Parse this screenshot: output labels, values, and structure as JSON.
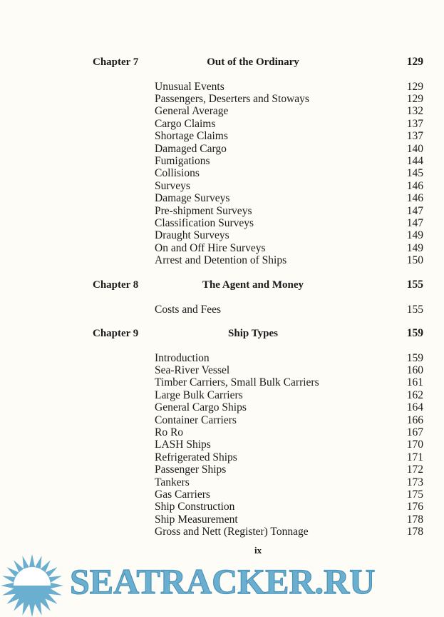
{
  "chapters": [
    {
      "label": "Chapter 7",
      "title": "Out of the Ordinary",
      "page": "129",
      "entries": [
        {
          "title": "Unusual Events",
          "page": "129"
        },
        {
          "title": "Passengers, Deserters and Stoways",
          "page": "129"
        },
        {
          "title": "General Average",
          "page": "132"
        },
        {
          "title": "Cargo Claims",
          "page": "137"
        },
        {
          "title": "Shortage Claims",
          "page": "137"
        },
        {
          "title": "Damaged Cargo",
          "page": "140"
        },
        {
          "title": "Fumigations",
          "page": "144"
        },
        {
          "title": "Collisions",
          "page": "145"
        },
        {
          "title": "Surveys",
          "page": "146"
        },
        {
          "title": "Damage Surveys",
          "page": "146"
        },
        {
          "title": "Pre-shipment Surveys",
          "page": "147"
        },
        {
          "title": "Classification Surveys",
          "page": "147"
        },
        {
          "title": "Draught Surveys",
          "page": "149"
        },
        {
          "title": "On and Off Hire Surveys",
          "page": "149"
        },
        {
          "title": "Arrest and Detention of Ships",
          "page": "150"
        }
      ]
    },
    {
      "label": "Chapter 8",
      "title": "The Agent and Money",
      "page": "155",
      "entries": [
        {
          "title": "Costs and Fees",
          "page": "155"
        }
      ]
    },
    {
      "label": "Chapter 9",
      "title": "Ship Types",
      "page": "159",
      "entries": [
        {
          "title": "Introduction",
          "page": "159"
        },
        {
          "title": "Sea-River Vessel",
          "page": "160"
        },
        {
          "title": "Timber Carriers, Small Bulk Carriers",
          "page": "161"
        },
        {
          "title": "Large Bulk Carriers",
          "page": "162"
        },
        {
          "title": "General Cargo Ships",
          "page": "164"
        },
        {
          "title": "Container Carriers",
          "page": "166"
        },
        {
          "title": "Ro Ro",
          "page": "167"
        },
        {
          "title": "LASH Ships",
          "page": "170"
        },
        {
          "title": "Refrigerated Ships",
          "page": "171"
        },
        {
          "title": "Passenger Ships",
          "page": "172"
        },
        {
          "title": "Tankers",
          "page": "173"
        },
        {
          "title": "Gas Carriers",
          "page": "175"
        },
        {
          "title": "Ship Construction",
          "page": "176"
        },
        {
          "title": "Ship Measurement",
          "page": "178"
        },
        {
          "title": "Gross and Nett (Register) Tonnage",
          "page": "178"
        }
      ]
    }
  ],
  "folio": "ix",
  "watermark": {
    "text": "SEATRACKER.RU",
    "color": "#6aaed0",
    "icon": "sun-icon"
  }
}
